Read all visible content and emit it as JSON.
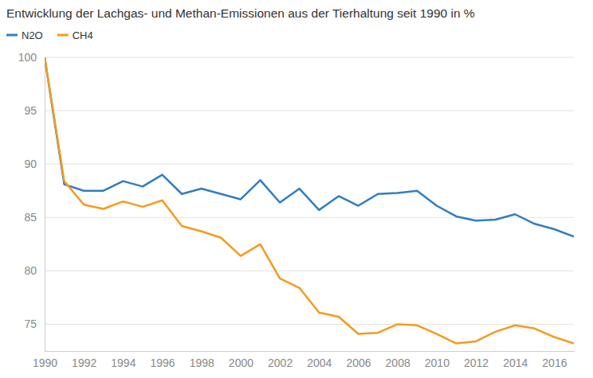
{
  "chart_data": {
    "type": "line",
    "title": "Entwicklung der Lachgas- und Methan-Emissionen aus der Tierhaltung seit 1990 in %",
    "x": [
      1990,
      1991,
      1992,
      1993,
      1994,
      1995,
      1996,
      1997,
      1998,
      1999,
      2000,
      2001,
      2002,
      2003,
      2004,
      2005,
      2006,
      2007,
      2008,
      2009,
      2010,
      2011,
      2012,
      2013,
      2014,
      2015,
      2016,
      2017
    ],
    "series": [
      {
        "name": "N2O",
        "color": "#2f7ec1",
        "values": [
          100,
          88.1,
          87.5,
          87.5,
          88.4,
          87.9,
          89.0,
          87.2,
          87.7,
          87.2,
          86.7,
          88.5,
          86.4,
          87.7,
          85.7,
          87.0,
          86.1,
          87.2,
          87.3,
          87.5,
          86.1,
          85.1,
          84.7,
          84.8,
          85.3,
          84.4,
          83.9,
          83.2
        ]
      },
      {
        "name": "CH4",
        "color": "#f59b1a",
        "values": [
          100,
          88.4,
          86.2,
          85.8,
          86.5,
          86.0,
          86.6,
          84.2,
          83.7,
          83.1,
          81.4,
          82.5,
          79.3,
          78.4,
          76.1,
          75.7,
          74.1,
          74.2,
          75.0,
          74.9,
          74.1,
          73.2,
          73.4,
          74.3,
          74.9,
          74.6,
          73.8,
          73.2
        ]
      }
    ],
    "xlim": [
      1990,
      2017
    ],
    "xticks": [
      1990,
      1992,
      1994,
      1996,
      1998,
      2000,
      2002,
      2004,
      2006,
      2008,
      2010,
      2012,
      2014,
      2016
    ],
    "ylim": [
      72.5,
      100
    ],
    "yticks": [
      75,
      80,
      85,
      90,
      95,
      100
    ],
    "grid": true,
    "legend": "top-left"
  }
}
